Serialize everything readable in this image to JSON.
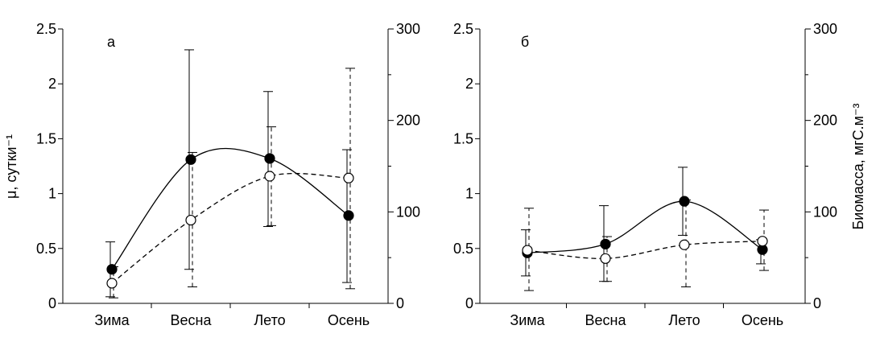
{
  "chart_data": [
    {
      "type": "line",
      "panel_label": "а",
      "categories": [
        "Зима",
        "Весна",
        "Лето",
        "Осень"
      ],
      "y_left": {
        "label": "μ, сутки⁻¹",
        "ylim": [
          0,
          2.5
        ],
        "ticks": [
          "0",
          "0.5",
          "1",
          "1.5",
          "2",
          "2.5"
        ]
      },
      "y_right": {
        "label": "",
        "ylim": [
          0,
          300
        ],
        "ticks": [
          "0",
          "100",
          "200",
          "300"
        ]
      },
      "series": [
        {
          "axis": "left",
          "marker": "filled-circle",
          "line": "solid",
          "values": [
            0.31,
            1.31,
            1.32,
            0.8
          ],
          "err_low": [
            0.06,
            0.31,
            0.7,
            0.19
          ],
          "err_high": [
            0.56,
            2.31,
            1.93,
            1.4
          ]
        },
        {
          "axis": "right",
          "marker": "open-circle",
          "line": "dashed",
          "values": [
            22,
            91,
            139,
            137
          ],
          "err_low": [
            6,
            18,
            85,
            16
          ],
          "err_high": [
            40,
            165,
            193,
            257
          ]
        }
      ]
    },
    {
      "type": "line",
      "panel_label": "б",
      "categories": [
        "Зима",
        "Весна",
        "Лето",
        "Осень"
      ],
      "y_left": {
        "label": "",
        "ylim": [
          0,
          2.5
        ],
        "ticks": [
          "0",
          "0.5",
          "1",
          "1.5",
          "2",
          "2.5"
        ]
      },
      "y_right": {
        "label": "Биомасса, мгС.м⁻³",
        "ylim": [
          0,
          300
        ],
        "ticks": [
          "0",
          "100",
          "200",
          "300"
        ]
      },
      "series": [
        {
          "axis": "left",
          "marker": "filled-circle",
          "line": "solid",
          "values": [
            0.46,
            0.54,
            0.93,
            0.49
          ],
          "err_low": [
            0.25,
            0.2,
            0.62,
            0.36
          ],
          "err_high": [
            0.67,
            0.89,
            1.24,
            0.58
          ]
        },
        {
          "axis": "right",
          "marker": "open-circle",
          "line": "dashed",
          "values": [
            58,
            49,
            64,
            68
          ],
          "err_low": [
            14,
            24,
            18,
            36
          ],
          "err_high": [
            104,
            73,
            113,
            102
          ]
        }
      ]
    }
  ]
}
